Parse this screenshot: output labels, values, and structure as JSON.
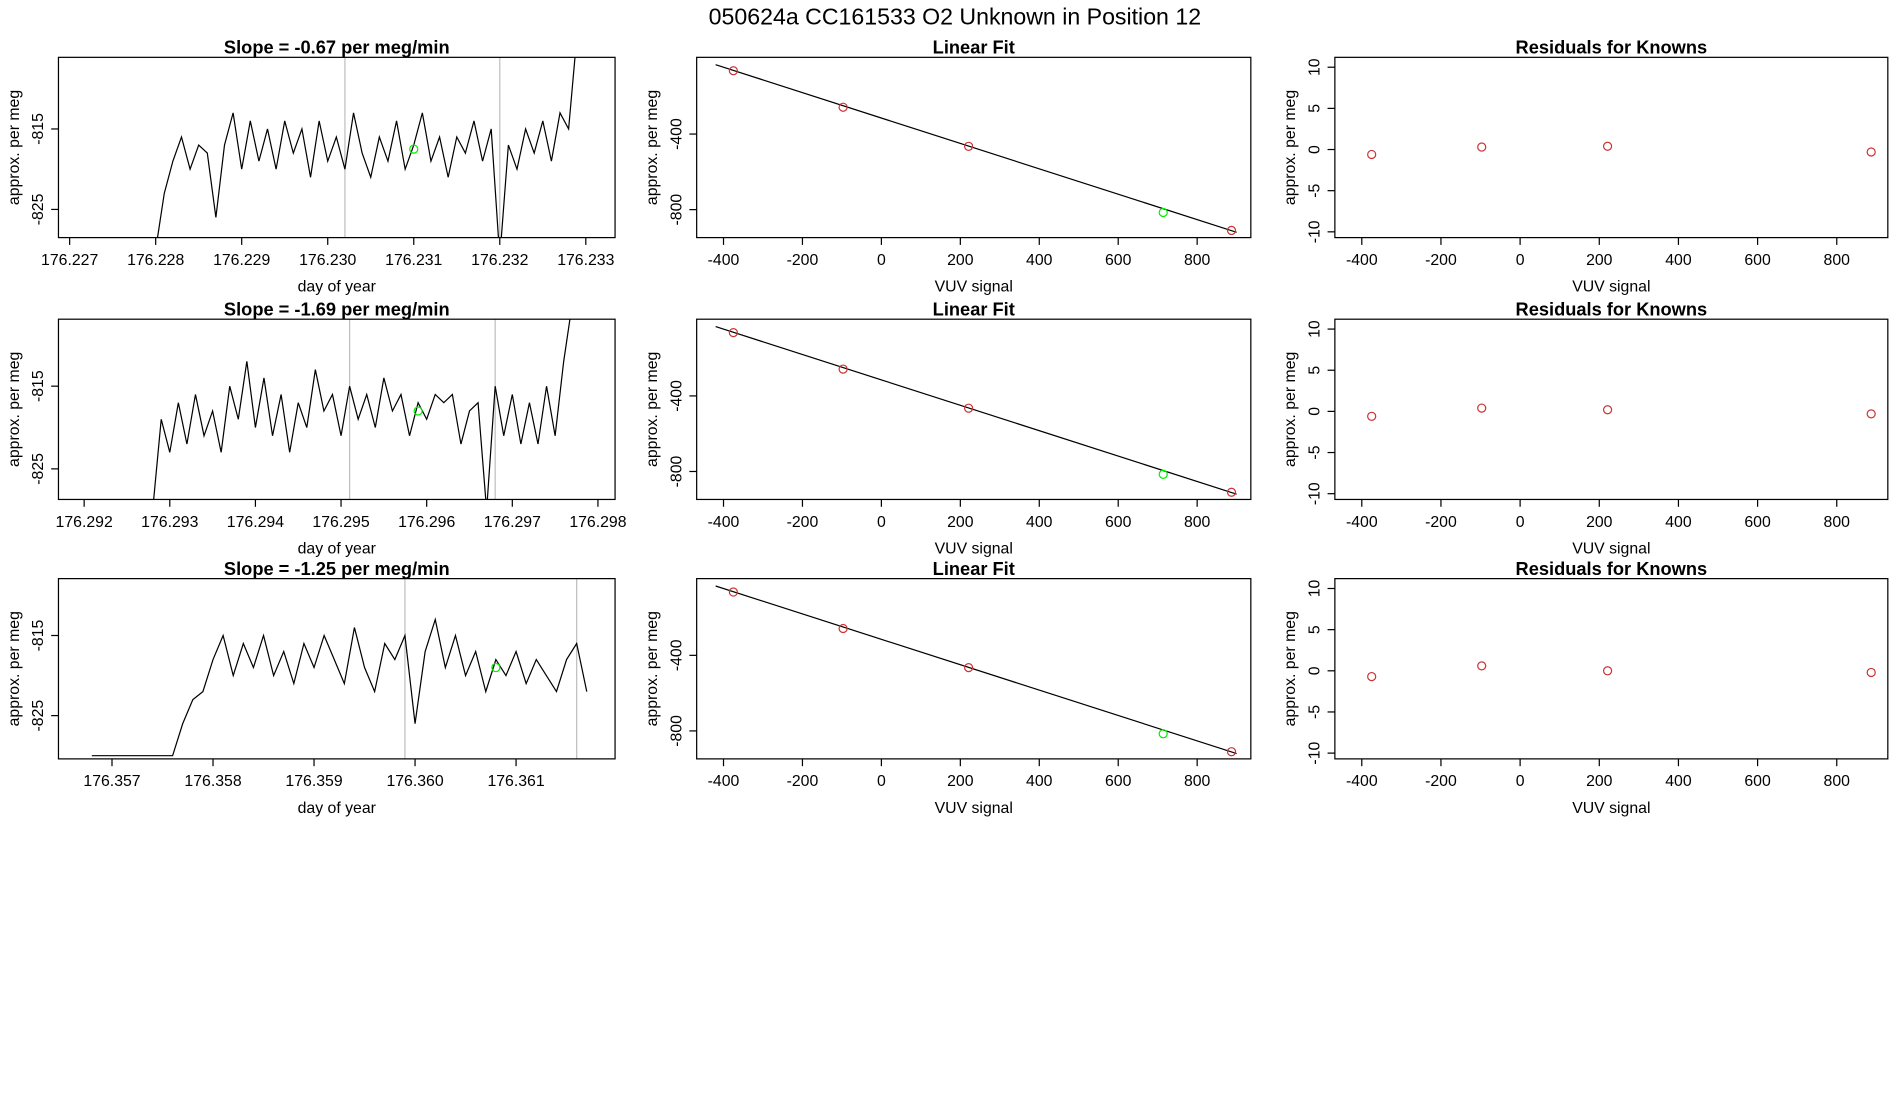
{
  "title": "050624a      CC161533   O2 Unknown in Position  12",
  "chart_data": [
    {
      "type": "line",
      "title": "Slope =  -0.67  per meg/min",
      "xlabel": "day of year",
      "ylabel": "approx. per meg",
      "xlim": [
        176.22687,
        176.23334
      ],
      "ylim": [
        -828.5,
        -806.1
      ],
      "xticks": [
        176.227,
        176.228,
        176.229,
        {
          "value": 176.23,
          "label": "176.230"
        },
        176.231,
        176.232,
        176.233
      ],
      "yticks": [
        -825,
        -815
      ],
      "vlines": [
        176.2302,
        176.232
      ],
      "vline_color": "#bebebe",
      "series": [
        {
          "style": "line",
          "color": "#000000",
          "x": [
            176.228,
            176.2281,
            176.2282,
            176.2283,
            176.2284,
            176.2285,
            176.2286,
            176.2287,
            176.2288,
            176.2289,
            176.229,
            176.2291,
            176.2292,
            176.2293,
            176.2294,
            176.2295,
            176.2296,
            176.2297,
            176.2298,
            176.2299,
            176.23,
            176.2301,
            176.2302,
            176.2303,
            176.2304,
            176.2305,
            176.2306,
            176.2307,
            176.2308,
            176.2309,
            176.231,
            176.2311,
            176.2312,
            176.2313,
            176.2314,
            176.2315,
            176.2316,
            176.2317,
            176.2318,
            176.2319,
            176.232,
            176.2321,
            176.2322,
            176.2323,
            176.2324,
            176.2325,
            176.2326,
            176.2327,
            176.2328,
            176.2329
          ],
          "values": [
            -830,
            -823,
            -819,
            -816,
            -820,
            -817,
            -818,
            -826,
            -817,
            -813,
            -820,
            -814,
            -819,
            -815,
            -820,
            -814,
            -818,
            -815,
            -821,
            -814,
            -819,
            -816,
            -820,
            -813,
            -818,
            -821,
            -816,
            -819,
            -814,
            -820,
            -817,
            -813,
            -819,
            -816,
            -821,
            -816,
            -818,
            -814,
            -819,
            -815,
            -831,
            -817,
            -820,
            -815,
            -818,
            -814,
            -819,
            -813,
            -815,
            -803
          ]
        },
        {
          "style": "points",
          "color": "#00ee00",
          "x": [
            176.231
          ],
          "values": [
            -817.5
          ]
        }
      ]
    },
    {
      "type": "scatter",
      "title": "Linear Fit",
      "xlabel": "VUV signal",
      "ylabel": "approx. per meg",
      "xlim": [
        -468,
        936
      ],
      "ylim": [
        -948,
        6
      ],
      "xticks": [
        -400,
        -200,
        0,
        200,
        400,
        600,
        800
      ],
      "yticks": [
        -400,
        -800
      ],
      "series": [
        {
          "style": "line",
          "color": "#000000",
          "x": [
            -420,
            900
          ],
          "values": [
            -33,
            -920
          ]
        },
        {
          "style": "points",
          "color": "#cd3333",
          "x": [
            -375,
            -97,
            221,
            887
          ],
          "values": [
            -65,
            -258,
            -465,
            -910
          ]
        },
        {
          "style": "points",
          "color": "#00ee00",
          "x": [
            714
          ],
          "values": [
            -815
          ]
        }
      ]
    },
    {
      "type": "scatter",
      "title": "Residuals for Knowns",
      "xlabel": "VUV signal",
      "ylabel": "approx. per meg",
      "xlim": [
        -468,
        929
      ],
      "ylim": [
        -10.7,
        11.2
      ],
      "xticks": [
        -400,
        -200,
        0,
        200,
        400,
        600,
        800
      ],
      "yticks": [
        -10,
        -5,
        0,
        5,
        10
      ],
      "series": [
        {
          "style": "points",
          "color": "#cd3333",
          "x": [
            -375,
            -97,
            221,
            887
          ],
          "values": [
            -0.6,
            0.3,
            0.4,
            -0.3
          ]
        }
      ]
    },
    {
      "type": "line",
      "title": "Slope =  -1.69  per meg/min",
      "xlabel": "day of year",
      "ylabel": "approx. per meg",
      "xlim": [
        176.2917,
        176.2982
      ],
      "ylim": [
        -828.7,
        -806.9
      ],
      "xticks": [
        176.292,
        176.293,
        176.294,
        176.295,
        176.296,
        176.297,
        176.298
      ],
      "yticks": [
        -825,
        -815
      ],
      "vlines": [
        176.2951,
        176.2968
      ],
      "vline_color": "#bebebe",
      "series": [
        {
          "style": "line",
          "color": "#000000",
          "x": [
            176.2928,
            176.2929,
            176.293,
            176.2931,
            176.2932,
            176.2933,
            176.2934,
            176.2935,
            176.2936,
            176.2937,
            176.2938,
            176.2939,
            176.294,
            176.2941,
            176.2942,
            176.2943,
            176.2944,
            176.2945,
            176.2946,
            176.2947,
            176.2948,
            176.2949,
            176.295,
            176.2951,
            176.2952,
            176.2953,
            176.2954,
            176.2955,
            176.2956,
            176.2957,
            176.2958,
            176.2959,
            176.296,
            176.2961,
            176.2962,
            176.2963,
            176.2964,
            176.2965,
            176.2966,
            176.2967,
            176.2968,
            176.2969,
            176.297,
            176.2971,
            176.2972,
            176.2973,
            176.2974,
            176.2975,
            176.2976,
            176.2977
          ],
          "values": [
            -830,
            -819,
            -823,
            -817,
            -822,
            -816,
            -821,
            -818,
            -823,
            -815,
            -819,
            -812,
            -820,
            -814,
            -821,
            -816,
            -823,
            -817,
            -820,
            -813,
            -818,
            -816,
            -821,
            -815,
            -819,
            -816,
            -820,
            -814,
            -818,
            -816,
            -821,
            -817,
            -819,
            -816,
            -817,
            -816,
            -822,
            -818,
            -817,
            -830,
            -815,
            -821,
            -816,
            -822,
            -817,
            -822,
            -815,
            -821,
            -812,
            -805
          ]
        },
        {
          "style": "points",
          "color": "#00ee00",
          "x": [
            176.2959
          ],
          "values": [
            -818
          ]
        }
      ]
    },
    {
      "type": "scatter",
      "title": "Linear Fit",
      "xlabel": "VUV signal",
      "ylabel": "approx. per meg",
      "xlim": [
        -468,
        936
      ],
      "ylim": [
        -948,
        6
      ],
      "xticks": [
        -400,
        -200,
        0,
        200,
        400,
        600,
        800
      ],
      "yticks": [
        -400,
        -800
      ],
      "series": [
        {
          "style": "line",
          "color": "#000000",
          "x": [
            -420,
            900
          ],
          "values": [
            -33,
            -920
          ]
        },
        {
          "style": "points",
          "color": "#cd3333",
          "x": [
            -375,
            -97,
            221,
            887
          ],
          "values": [
            -65,
            -258,
            -465,
            -910
          ]
        },
        {
          "style": "points",
          "color": "#00ee00",
          "x": [
            714
          ],
          "values": [
            -815
          ]
        }
      ]
    },
    {
      "type": "scatter",
      "title": "Residuals for Knowns",
      "xlabel": "VUV signal",
      "ylabel": "approx. per meg",
      "xlim": [
        -468,
        929
      ],
      "ylim": [
        -10.7,
        11.2
      ],
      "xticks": [
        -400,
        -200,
        0,
        200,
        400,
        600,
        800
      ],
      "yticks": [
        -10,
        -5,
        0,
        5,
        10
      ],
      "series": [
        {
          "style": "points",
          "color": "#cd3333",
          "x": [
            -375,
            -97,
            221,
            887
          ],
          "values": [
            -0.6,
            0.4,
            0.2,
            -0.3
          ]
        }
      ]
    },
    {
      "type": "line",
      "title": "Slope =  -1.25  per meg/min",
      "xlabel": "day of year",
      "ylabel": "approx. per meg",
      "xlim": [
        176.35647,
        176.36198
      ],
      "ylim": [
        -830.4,
        -807.9
      ],
      "xticks": [
        176.357,
        176.358,
        176.359,
        {
          "value": 176.36,
          "label": "176.360"
        },
        176.361
      ],
      "yticks": [
        -825,
        -815
      ],
      "vlines": [
        176.3599,
        176.3616
      ],
      "vline_color": "#bebebe",
      "series": [
        {
          "style": "line",
          "color": "#000000",
          "x": [
            176.3568,
            176.3569,
            176.357,
            176.3571,
            176.3572,
            176.3573,
            176.3574,
            176.3575,
            176.3576,
            176.3577,
            176.3578,
            176.3579,
            176.358,
            176.3581,
            176.3582,
            176.3583,
            176.3584,
            176.3585,
            176.3586,
            176.3587,
            176.3588,
            176.3589,
            176.359,
            176.3591,
            176.3592,
            176.3593,
            176.3594,
            176.3595,
            176.3596,
            176.3597,
            176.3598,
            176.3599,
            176.36,
            176.3601,
            176.3602,
            176.3603,
            176.3604,
            176.3605,
            176.3606,
            176.3607,
            176.3608,
            176.3609,
            176.361,
            176.3611,
            176.3612,
            176.3613,
            176.3614,
            176.3615,
            176.3616,
            176.3617
          ],
          "values": [
            -830,
            -830,
            -830,
            -830,
            -830,
            -830,
            -830,
            -830,
            -830,
            -826,
            -823,
            -822,
            -818,
            -815,
            -820,
            -816,
            -819,
            -815,
            -820,
            -817,
            -821,
            -816,
            -819,
            -815,
            -818,
            -821,
            -814,
            -819,
            -822,
            -816,
            -818,
            -815,
            -826,
            -817,
            -813,
            -819,
            -815,
            -820,
            -817,
            -822,
            -818,
            -820,
            -817,
            -821,
            -818,
            -820,
            -822,
            -818,
            -816,
            -822
          ]
        },
        {
          "style": "points",
          "color": "#00ee00",
          "x": [
            176.3608
          ],
          "values": [
            -819
          ]
        }
      ]
    },
    {
      "type": "scatter",
      "title": "Linear Fit",
      "xlabel": "VUV signal",
      "ylabel": "approx. per meg",
      "xlim": [
        -468,
        936
      ],
      "ylim": [
        -948,
        6
      ],
      "xticks": [
        -400,
        -200,
        0,
        200,
        400,
        600,
        800
      ],
      "yticks": [
        -400,
        -800
      ],
      "series": [
        {
          "style": "line",
          "color": "#000000",
          "x": [
            -420,
            900
          ],
          "values": [
            -33,
            -920
          ]
        },
        {
          "style": "points",
          "color": "#cd3333",
          "x": [
            -375,
            -97,
            221,
            887
          ],
          "values": [
            -65,
            -258,
            -465,
            -910
          ]
        },
        {
          "style": "points",
          "color": "#00ee00",
          "x": [
            714
          ],
          "values": [
            -815
          ]
        }
      ]
    },
    {
      "type": "scatter",
      "title": "Residuals for Knowns",
      "xlabel": "VUV signal",
      "ylabel": "approx. per meg",
      "xlim": [
        -468,
        929
      ],
      "ylim": [
        -10.7,
        11.2
      ],
      "xticks": [
        -400,
        -200,
        0,
        200,
        400,
        600,
        800
      ],
      "yticks": [
        -10,
        -5,
        0,
        5,
        10
      ],
      "series": [
        {
          "style": "points",
          "color": "#cd3333",
          "x": [
            -375,
            -97,
            221,
            887
          ],
          "values": [
            -0.7,
            0.6,
            0.0,
            -0.2
          ]
        }
      ]
    }
  ]
}
